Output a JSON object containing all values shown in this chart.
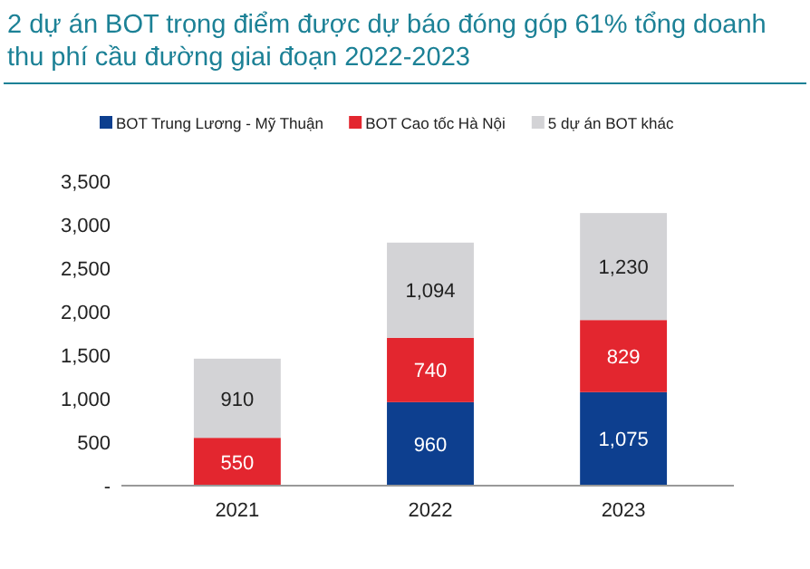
{
  "chart_data": {
    "type": "bar",
    "title": "2 dự án BOT trọng điểm được dự báo đóng góp 61% tổng doanh thu phí cầu đường giai đoạn 2022-2023",
    "categories": [
      "2021",
      "2022",
      "2023"
    ],
    "stacked": true,
    "legend": "top",
    "ylim": [
      0,
      3500
    ],
    "yticks": [
      {
        "value": 0,
        "label": "-"
      },
      {
        "value": 500,
        "label": "500"
      },
      {
        "value": 1000,
        "label": "1,000"
      },
      {
        "value": 1500,
        "label": "1,500"
      },
      {
        "value": 2000,
        "label": "2,000"
      },
      {
        "value": 2500,
        "label": "2,500"
      },
      {
        "value": 3000,
        "label": "3,000"
      },
      {
        "value": 3500,
        "label": "3,500"
      }
    ],
    "series": [
      {
        "name": "BOT Trung Lương - Mỹ Thuận",
        "color": "#0d3f8f",
        "values": [
          null,
          960,
          1075
        ],
        "value_labels": [
          null,
          "960",
          "1,075"
        ]
      },
      {
        "name": "BOT Cao tốc Hà Nội",
        "color": "#e3262f",
        "values": [
          550,
          740,
          829
        ],
        "value_labels": [
          "550",
          "740",
          "829"
        ]
      },
      {
        "name": "5 dự án BOT khác",
        "color": "#d3d3d6",
        "values": [
          910,
          1094,
          1230
        ],
        "value_labels": [
          "910",
          "1,094",
          "1,230"
        ]
      }
    ]
  }
}
